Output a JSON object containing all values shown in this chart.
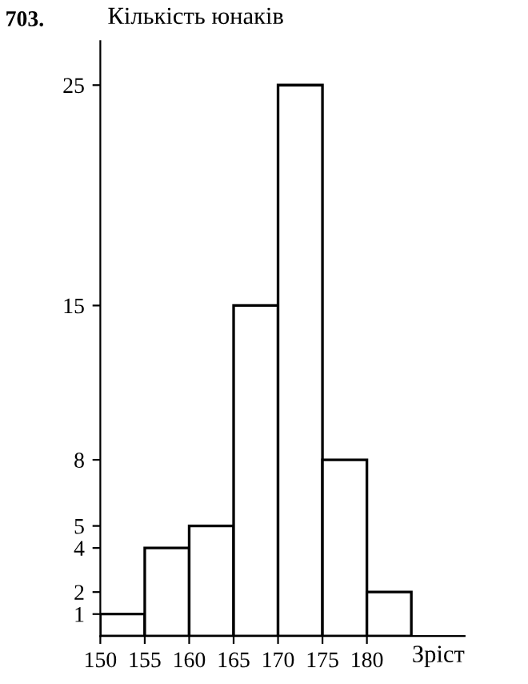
{
  "chart_data": {
    "type": "histogram",
    "ylabel": "Кількість юнаків",
    "xlabel": "Зріст",
    "annotations": [
      "703."
    ],
    "bins": [
      150,
      155,
      160,
      165,
      170,
      175,
      180,
      185
    ],
    "values": [
      1,
      4,
      5,
      15,
      25,
      8,
      2
    ],
    "color": "#ffffff",
    "xlim": [
      150,
      191
    ],
    "ylim": [
      0,
      27
    ],
    "xticks": [
      150,
      155,
      160,
      165,
      170,
      175,
      180
    ],
    "yticks": [
      1,
      2,
      4,
      5,
      8,
      15,
      25
    ],
    "grid": false,
    "legend": false
  }
}
